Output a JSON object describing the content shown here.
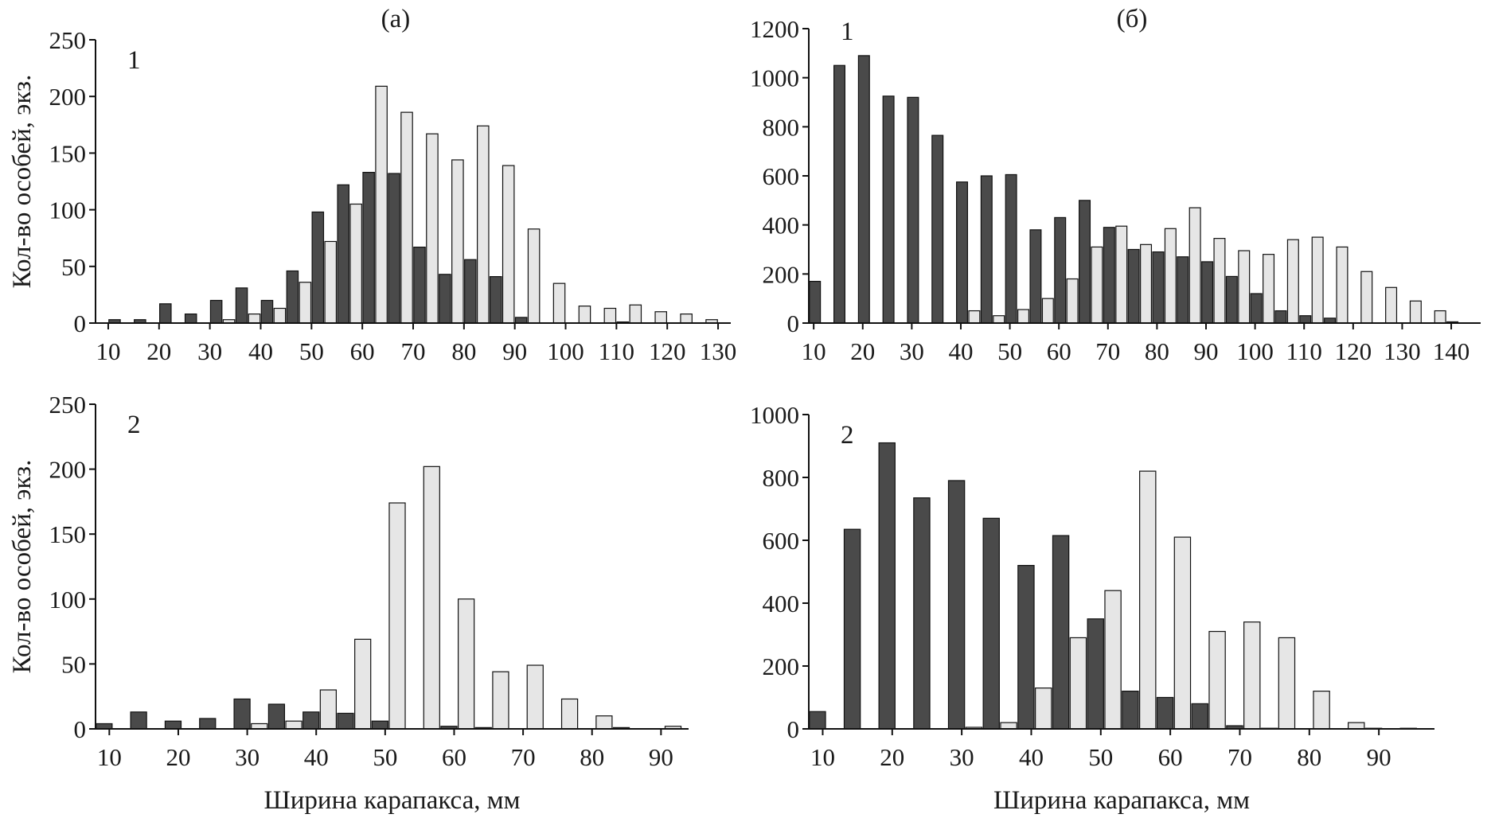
{
  "figure": {
    "bottom_xlabel": "Ширина карапакса, мм",
    "colors": {
      "dark": "#4a4a4a",
      "light": "#e6e6e6",
      "stroke": "#111111"
    }
  },
  "chart_data": [
    {
      "type": "bar",
      "id": "a1",
      "header": "(a)",
      "panel_label": "1",
      "ylabel": "Кол-во особей, экз.",
      "xlabel": "",
      "xlim": [
        7.5,
        132.5
      ],
      "ylim": [
        0,
        250
      ],
      "yticks": [
        0,
        50,
        100,
        150,
        200,
        250
      ],
      "xticks": [
        10,
        20,
        30,
        40,
        50,
        60,
        70,
        80,
        90,
        100,
        110,
        120,
        130
      ],
      "bin_width": 5,
      "bin_starts": [
        10,
        15,
        20,
        25,
        30,
        35,
        40,
        45,
        50,
        55,
        60,
        65,
        70,
        75,
        80,
        85,
        90,
        95,
        100,
        105,
        110,
        115,
        120,
        125
      ],
      "series": [
        {
          "name": "dark",
          "values": [
            3,
            3,
            17,
            8,
            20,
            31,
            20,
            46,
            98,
            122,
            133,
            132,
            67,
            43,
            56,
            41,
            5,
            0,
            0,
            0,
            1,
            0,
            0,
            0
          ]
        },
        {
          "name": "light",
          "values": [
            0,
            0,
            0,
            0,
            3,
            8,
            13,
            36,
            72,
            105,
            209,
            186,
            167,
            144,
            174,
            139,
            83,
            35,
            15,
            13,
            16,
            10,
            8,
            3
          ]
        }
      ]
    },
    {
      "type": "bar",
      "id": "b1",
      "header": "(б)",
      "panel_label": "1",
      "ylabel": "",
      "xlabel": "",
      "xlim": [
        9,
        146
      ],
      "ylim": [
        0,
        1200
      ],
      "yticks": [
        0,
        200,
        400,
        600,
        800,
        1000,
        1200
      ],
      "xticks": [
        10,
        20,
        30,
        40,
        50,
        60,
        70,
        80,
        90,
        100,
        110,
        120,
        130,
        140
      ],
      "bin_width": 5,
      "bin_starts": [
        9,
        14,
        19,
        24,
        29,
        34,
        39,
        44,
        49,
        54,
        59,
        64,
        69,
        74,
        79,
        84,
        89,
        94,
        99,
        104,
        109,
        114,
        119,
        124,
        129,
        134,
        139
      ],
      "series": [
        {
          "name": "dark",
          "values": [
            170,
            1050,
            1090,
            925,
            920,
            765,
            575,
            600,
            605,
            380,
            430,
            500,
            390,
            300,
            290,
            270,
            250,
            190,
            120,
            50,
            30,
            20,
            0,
            0,
            0,
            0,
            5
          ]
        },
        {
          "name": "light",
          "values": [
            0,
            0,
            0,
            0,
            0,
            0,
            50,
            30,
            55,
            100,
            180,
            310,
            395,
            320,
            385,
            470,
            345,
            295,
            280,
            340,
            350,
            310,
            210,
            145,
            90,
            50,
            0
          ]
        }
      ]
    },
    {
      "type": "bar",
      "id": "a2",
      "header": "",
      "panel_label": "2",
      "ylabel": "Кол-во особей, экз.",
      "xlabel": "Ширина карапакса, мм",
      "xlim": [
        8,
        94
      ],
      "ylim": [
        0,
        250
      ],
      "yticks": [
        0,
        50,
        100,
        150,
        200,
        250
      ],
      "xticks": [
        10,
        20,
        30,
        40,
        50,
        60,
        70,
        80,
        90
      ],
      "bin_width": 5,
      "bin_starts": [
        8,
        13,
        18,
        23,
        28,
        33,
        38,
        43,
        48,
        53,
        58,
        63,
        68,
        73,
        78,
        83,
        88
      ],
      "series": [
        {
          "name": "dark",
          "values": [
            4,
            13,
            6,
            8,
            23,
            19,
            13,
            12,
            6,
            0,
            2,
            1,
            0,
            0,
            0,
            1,
            0
          ]
        },
        {
          "name": "light",
          "values": [
            0,
            0,
            0,
            0,
            4,
            6,
            30,
            69,
            174,
            202,
            100,
            44,
            49,
            23,
            10,
            0,
            2
          ]
        }
      ]
    },
    {
      "type": "bar",
      "id": "b2",
      "header": "",
      "panel_label": "2",
      "ylabel": "",
      "xlabel": "Ширина карапакса, мм",
      "xlim": [
        8,
        98
      ],
      "ylim": [
        0,
        1000
      ],
      "yticks": [
        0,
        200,
        400,
        600,
        800,
        1000
      ],
      "xticks": [
        10,
        20,
        30,
        40,
        50,
        60,
        70,
        80,
        90
      ],
      "bin_width": 5,
      "bin_starts": [
        8,
        13,
        18,
        23,
        28,
        33,
        38,
        43,
        48,
        53,
        58,
        63,
        68,
        73,
        78,
        83,
        88,
        93
      ],
      "series": [
        {
          "name": "dark",
          "values": [
            55,
            635,
            910,
            735,
            790,
            670,
            520,
            615,
            350,
            120,
            100,
            80,
            10,
            2,
            0,
            0,
            2,
            2
          ]
        },
        {
          "name": "light",
          "values": [
            0,
            0,
            0,
            0,
            5,
            20,
            130,
            290,
            440,
            820,
            610,
            310,
            340,
            290,
            120,
            20,
            0,
            0
          ]
        }
      ]
    }
  ]
}
